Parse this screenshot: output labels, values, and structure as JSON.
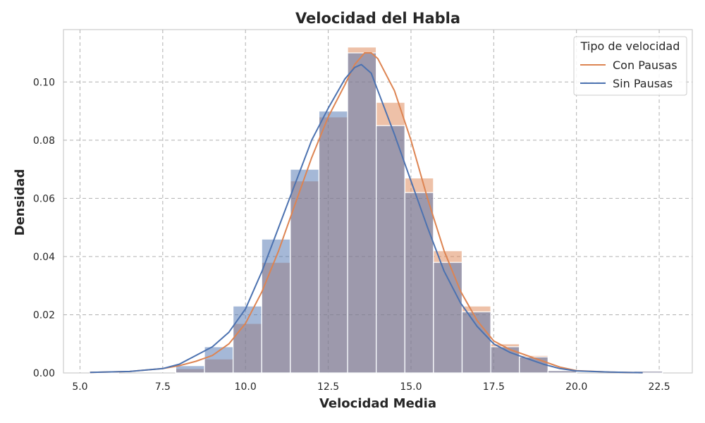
{
  "chart_data": {
    "type": "histogram",
    "title": "Velocidad del Habla",
    "xlabel": "Velocidad Media",
    "ylabel": "Densidad",
    "xlim": [
      4.5,
      23.5
    ],
    "ylim": [
      0,
      0.118
    ],
    "xticks": [
      5.0,
      7.5,
      10.0,
      12.5,
      15.0,
      17.5,
      20.0,
      22.5
    ],
    "xtick_labels": [
      "5.0",
      "7.5",
      "10.0",
      "12.5",
      "15.0",
      "17.5",
      "20.0",
      "22.5"
    ],
    "yticks": [
      0.0,
      0.02,
      0.04,
      0.06,
      0.08,
      0.1
    ],
    "ytick_labels": [
      "0.00",
      "0.02",
      "0.04",
      "0.06",
      "0.08",
      "0.10"
    ],
    "grid": true,
    "legend": {
      "title": "Tipo de velocidad",
      "position": "top-right"
    },
    "bin_edges": [
      5.3,
      6.165,
      7.03,
      7.895,
      8.76,
      9.625,
      10.49,
      11.355,
      12.22,
      13.085,
      13.95,
      14.815,
      15.68,
      16.545,
      17.41,
      18.275,
      19.14,
      20.005,
      20.87,
      21.735,
      22.6
    ],
    "series": [
      {
        "name": "Con Pausas",
        "color": "#dd8452",
        "hist": [
          0.0006,
          0.0,
          0.0,
          0.0015,
          0.0048,
          0.017,
          0.038,
          0.066,
          0.088,
          0.112,
          0.093,
          0.067,
          0.042,
          0.023,
          0.01,
          0.006,
          0.0008,
          0.0,
          0.0,
          0.0006
        ],
        "kde_x": [
          5.3,
          6.5,
          7.5,
          8.0,
          8.5,
          9.0,
          9.5,
          10.0,
          10.5,
          11.0,
          11.5,
          12.0,
          12.5,
          13.0,
          13.3,
          13.6,
          13.8,
          14.0,
          14.5,
          15.0,
          15.5,
          16.0,
          16.5,
          17.0,
          17.5,
          18.0,
          18.5,
          19.0,
          19.5,
          20.0,
          21.0,
          22.0
        ],
        "kde_y": [
          0.0002,
          0.0005,
          0.0015,
          0.0025,
          0.004,
          0.006,
          0.01,
          0.017,
          0.028,
          0.042,
          0.058,
          0.074,
          0.088,
          0.099,
          0.106,
          0.11,
          0.11,
          0.108,
          0.097,
          0.08,
          0.06,
          0.042,
          0.028,
          0.018,
          0.011,
          0.008,
          0.006,
          0.004,
          0.002,
          0.0008,
          0.0003,
          0.0001
        ]
      },
      {
        "name": "Sin Pausas",
        "color": "#4c72b0",
        "hist": [
          0.0006,
          0.0,
          0.0,
          0.0025,
          0.009,
          0.023,
          0.046,
          0.07,
          0.09,
          0.11,
          0.085,
          0.062,
          0.038,
          0.021,
          0.009,
          0.0055,
          0.0008,
          0.0,
          0.0,
          0.0006
        ],
        "kde_x": [
          5.3,
          6.5,
          7.5,
          8.0,
          8.5,
          9.0,
          9.5,
          10.0,
          10.5,
          11.0,
          11.5,
          12.0,
          12.5,
          13.0,
          13.3,
          13.5,
          13.8,
          14.0,
          14.5,
          15.0,
          15.5,
          16.0,
          16.5,
          17.0,
          17.5,
          18.0,
          18.5,
          19.0,
          19.5,
          20.0,
          21.0,
          22.0
        ],
        "kde_y": [
          0.0002,
          0.0005,
          0.0015,
          0.003,
          0.006,
          0.009,
          0.014,
          0.022,
          0.035,
          0.05,
          0.065,
          0.08,
          0.091,
          0.101,
          0.105,
          0.106,
          0.103,
          0.097,
          0.082,
          0.066,
          0.05,
          0.035,
          0.024,
          0.016,
          0.01,
          0.007,
          0.005,
          0.003,
          0.0015,
          0.0007,
          0.0003,
          0.0001
        ]
      }
    ]
  }
}
